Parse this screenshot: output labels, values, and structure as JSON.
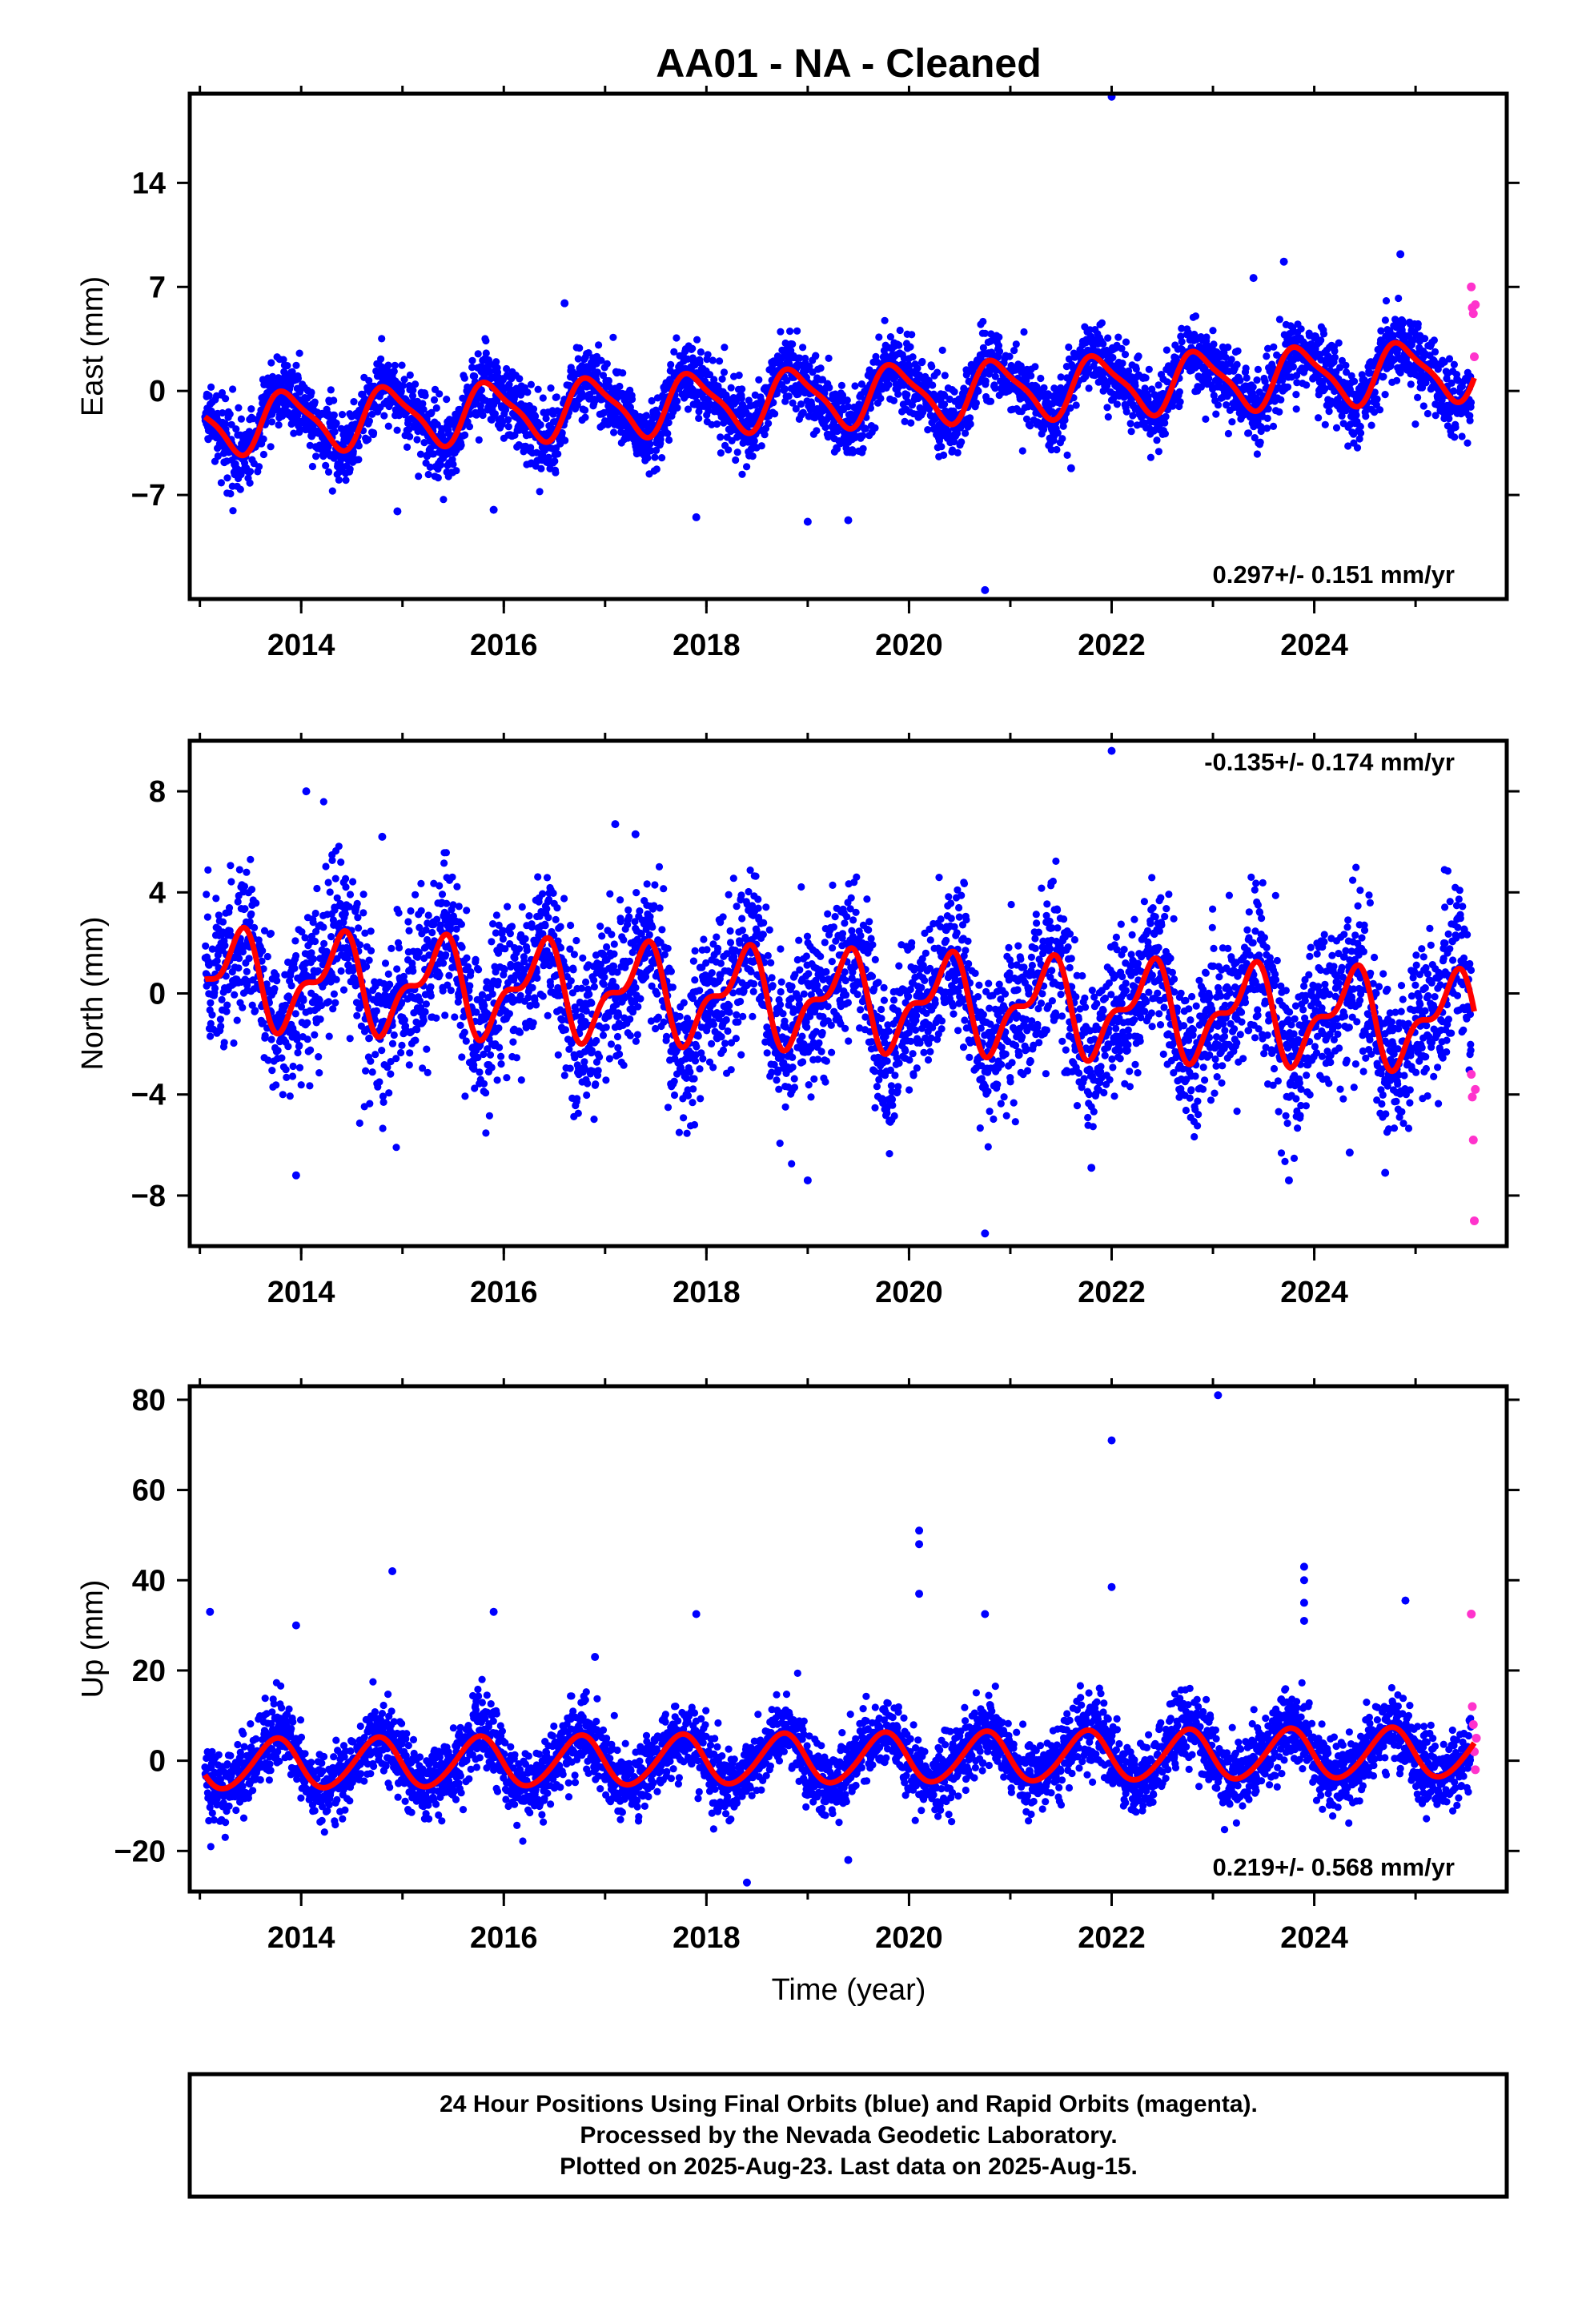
{
  "title": "AA01  - NA - Cleaned",
  "xlabel": "Time (year)",
  "footer": {
    "line1": "24 Hour Positions Using Final Orbits (blue) and Rapid Orbits (magenta).",
    "line2": "Processed by the Nevada Geodetic Laboratory.",
    "line3": "Plotted on 2025-Aug-23. Last data on 2025-Aug-15."
  },
  "colors": {
    "final_orbits": "#0000ff",
    "rapid_orbits": "#ff33cc",
    "model_fit": "#ff0000"
  },
  "chart_data": [
    {
      "type": "scatter",
      "component": "east",
      "ylabel": "East (mm)",
      "xlim": [
        2012.9,
        2025.9
      ],
      "ylim": [
        -14,
        20
      ],
      "yticks": [
        -7,
        0,
        7,
        14
      ],
      "xticks": [
        2014,
        2016,
        2018,
        2020,
        2022,
        2024
      ],
      "rate_text": "0.297+/- 0.151 mm/yr",
      "rate_position": "bottom-right",
      "trend": {
        "start": -2.3,
        "slope": 0.297
      },
      "seasonal": {
        "annual_amp": 1.9,
        "annual_phase": 0.62,
        "semi_amp": 0.5,
        "semi_phase": 0.1
      },
      "noise_sd": 1.2,
      "outliers": [
        {
          "x": 2022.0,
          "y": 19.8
        },
        {
          "x": 2020.75,
          "y": -13.4
        },
        {
          "x": 2019.0,
          "y": -8.8
        },
        {
          "x": 2019.4,
          "y": -8.7
        },
        {
          "x": 2017.9,
          "y": -8.5
        },
        {
          "x": 2015.9,
          "y": -8.0
        },
        {
          "x": 2014.95,
          "y": -8.1
        },
        {
          "x": 2023.7,
          "y": 8.7
        },
        {
          "x": 2024.85,
          "y": 9.2
        },
        {
          "x": 2016.6,
          "y": 5.9
        },
        {
          "x": 2021.6,
          "y": -5.2
        },
        {
          "x": 2023.4,
          "y": 7.6
        }
      ],
      "rapid_points": [
        {
          "x": 2025.55,
          "y": 7.0
        },
        {
          "x": 2025.56,
          "y": 5.6
        },
        {
          "x": 2025.57,
          "y": 5.2
        },
        {
          "x": 2025.58,
          "y": 2.3
        },
        {
          "x": 2025.59,
          "y": 5.8
        }
      ]
    },
    {
      "type": "scatter",
      "component": "north",
      "ylabel": "North (mm)",
      "xlim": [
        2012.9,
        2025.9
      ],
      "ylim": [
        -10,
        10
      ],
      "yticks": [
        -8,
        -4,
        0,
        4,
        8
      ],
      "xticks": [
        2014,
        2016,
        2018,
        2020,
        2022,
        2024
      ],
      "rate_text": "-0.135+/- 0.174 mm/yr",
      "rate_position": "top-right",
      "trend": {
        "start": 0.6,
        "slope": -0.135
      },
      "seasonal": {
        "annual_amp": 1.6,
        "annual_phase": 0.1,
        "semi_amp": 0.8,
        "semi_phase": 0.35
      },
      "noise_sd": 1.5,
      "outliers": [
        {
          "x": 2022.0,
          "y": 9.6
        },
        {
          "x": 2014.05,
          "y": 8.0
        },
        {
          "x": 2013.95,
          "y": -7.2
        },
        {
          "x": 2020.75,
          "y": -9.5
        },
        {
          "x": 2019.0,
          "y": -7.4
        },
        {
          "x": 2017.1,
          "y": 6.7
        },
        {
          "x": 2017.3,
          "y": 6.3
        },
        {
          "x": 2014.8,
          "y": 6.2
        },
        {
          "x": 2024.35,
          "y": -6.3
        },
        {
          "x": 2024.7,
          "y": -7.1
        },
        {
          "x": 2023.75,
          "y": -7.4
        },
        {
          "x": 2021.8,
          "y": -6.9
        }
      ],
      "rapid_points": [
        {
          "x": 2025.55,
          "y": -3.2
        },
        {
          "x": 2025.56,
          "y": -4.1
        },
        {
          "x": 2025.57,
          "y": -5.8
        },
        {
          "x": 2025.58,
          "y": -9.0
        },
        {
          "x": 2025.59,
          "y": -3.8
        }
      ]
    },
    {
      "type": "scatter",
      "component": "up",
      "ylabel": "Up (mm)",
      "xlim": [
        2012.9,
        2025.9
      ],
      "ylim": [
        -29,
        83
      ],
      "yticks": [
        -20,
        0,
        20,
        40,
        60,
        80
      ],
      "xticks": [
        2014,
        2016,
        2018,
        2020,
        2022,
        2024
      ],
      "rate_text": "0.219+/- 0.568 mm/yr",
      "rate_position": "bottom-right",
      "trend": {
        "start": -1.0,
        "slope": 0.219
      },
      "seasonal": {
        "annual_amp": 5.5,
        "annual_phase": 0.5,
        "semi_amp": 0.5,
        "semi_phase": 0.2
      },
      "noise_sd": 4.0,
      "outliers": [
        {
          "x": 2023.05,
          "y": 81.0
        },
        {
          "x": 2022.0,
          "y": 71.0
        },
        {
          "x": 2020.1,
          "y": 51.0
        },
        {
          "x": 2020.1,
          "y": 48.0
        },
        {
          "x": 2020.1,
          "y": 37.0
        },
        {
          "x": 2023.9,
          "y": 43.0
        },
        {
          "x": 2023.9,
          "y": 40.0
        },
        {
          "x": 2023.9,
          "y": 35.0
        },
        {
          "x": 2023.9,
          "y": 31.0
        },
        {
          "x": 2014.9,
          "y": 42.0
        },
        {
          "x": 2013.1,
          "y": 33.0
        },
        {
          "x": 2015.9,
          "y": 33.0
        },
        {
          "x": 2017.9,
          "y": 32.5
        },
        {
          "x": 2020.75,
          "y": 32.5
        },
        {
          "x": 2024.9,
          "y": 35.5
        },
        {
          "x": 2022.0,
          "y": 38.5
        },
        {
          "x": 2018.4,
          "y": -27.0
        },
        {
          "x": 2019.4,
          "y": -22.0
        },
        {
          "x": 2013.95,
          "y": 30.0
        },
        {
          "x": 2016.9,
          "y": 23.0
        }
      ],
      "rapid_points": [
        {
          "x": 2025.55,
          "y": 32.5
        },
        {
          "x": 2025.56,
          "y": 12.0
        },
        {
          "x": 2025.57,
          "y": 8.0
        },
        {
          "x": 2025.58,
          "y": 2.0
        },
        {
          "x": 2025.59,
          "y": -2.0
        },
        {
          "x": 2025.6,
          "y": 5.0
        }
      ]
    }
  ]
}
